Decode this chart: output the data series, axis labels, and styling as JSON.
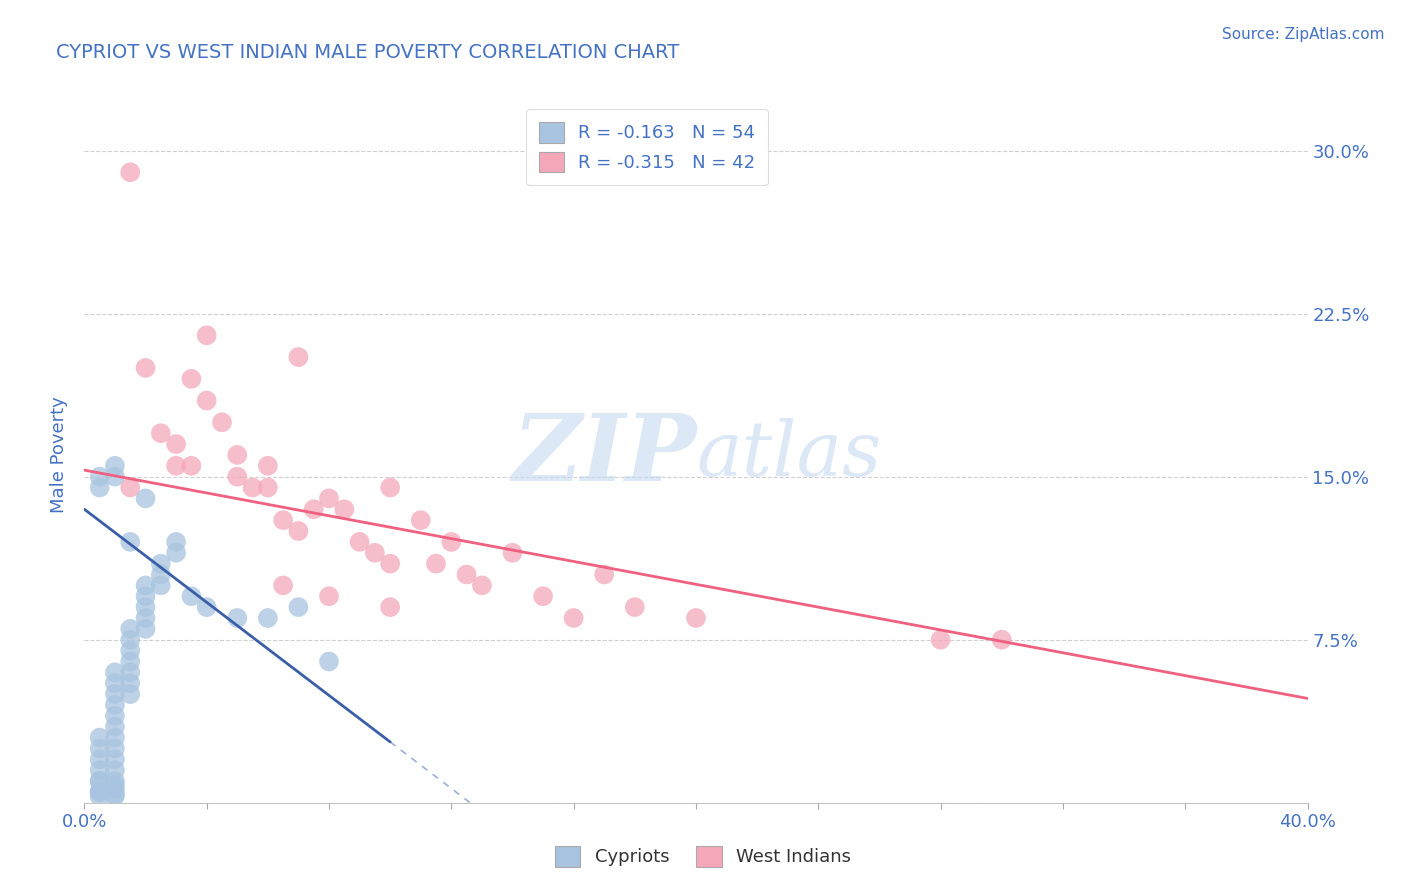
{
  "title": "CYPRIOT VS WEST INDIAN MALE POVERTY CORRELATION CHART",
  "source": "Source: ZipAtlas.com",
  "ylabel": "Male Poverty",
  "yticks": [
    0.0,
    0.075,
    0.15,
    0.225,
    0.3
  ],
  "ytick_labels": [
    "",
    "7.5%",
    "15.0%",
    "22.5%",
    "30.0%"
  ],
  "xmin": 0.0,
  "xmax": 0.4,
  "ymin": 0.0,
  "ymax": 0.32,
  "watermark_zip": "ZIP",
  "watermark_atlas": "atlas",
  "legend_label1": "R = -0.163   N = 54",
  "legend_label2": "R = -0.315   N = 42",
  "cypriot_color": "#a8c4e0",
  "west_indian_color": "#f4a7b9",
  "cypriot_line_color": "#3a5fa8",
  "west_indian_line_color": "#f06080",
  "title_color": "#4472c4",
  "source_color": "#4472c4",
  "axis_label_color": "#4472c4",
  "tick_color": "#4472c4",
  "grid_color": "#d0d0d0",
  "cypriot_scatter_x": [
    0.005,
    0.005,
    0.005,
    0.005,
    0.005,
    0.005,
    0.005,
    0.005,
    0.005,
    0.005,
    0.01,
    0.01,
    0.01,
    0.01,
    0.01,
    0.01,
    0.01,
    0.01,
    0.01,
    0.01,
    0.01,
    0.01,
    0.01,
    0.01,
    0.01,
    0.015,
    0.015,
    0.015,
    0.015,
    0.015,
    0.015,
    0.015,
    0.02,
    0.02,
    0.02,
    0.02,
    0.02,
    0.025,
    0.025,
    0.025,
    0.03,
    0.03,
    0.035,
    0.04,
    0.05,
    0.06,
    0.07,
    0.08,
    0.005,
    0.005,
    0.01,
    0.01,
    0.015,
    0.02
  ],
  "cypriot_scatter_y": [
    0.03,
    0.025,
    0.02,
    0.015,
    0.01,
    0.01,
    0.005,
    0.005,
    0.005,
    0.003,
    0.06,
    0.055,
    0.05,
    0.045,
    0.04,
    0.035,
    0.03,
    0.025,
    0.02,
    0.015,
    0.01,
    0.008,
    0.006,
    0.004,
    0.003,
    0.08,
    0.075,
    0.07,
    0.065,
    0.06,
    0.055,
    0.05,
    0.1,
    0.095,
    0.09,
    0.085,
    0.08,
    0.11,
    0.105,
    0.1,
    0.12,
    0.115,
    0.095,
    0.09,
    0.085,
    0.085,
    0.09,
    0.065,
    0.15,
    0.145,
    0.155,
    0.15,
    0.12,
    0.14
  ],
  "west_indian_scatter_x": [
    0.015,
    0.015,
    0.02,
    0.025,
    0.03,
    0.03,
    0.035,
    0.04,
    0.04,
    0.045,
    0.05,
    0.055,
    0.06,
    0.06,
    0.065,
    0.07,
    0.07,
    0.075,
    0.08,
    0.085,
    0.09,
    0.095,
    0.1,
    0.1,
    0.11,
    0.115,
    0.12,
    0.125,
    0.13,
    0.14,
    0.15,
    0.16,
    0.17,
    0.18,
    0.2,
    0.28,
    0.3,
    0.035,
    0.05,
    0.065,
    0.08,
    0.1
  ],
  "west_indian_scatter_y": [
    0.29,
    0.145,
    0.2,
    0.17,
    0.165,
    0.155,
    0.195,
    0.185,
    0.215,
    0.175,
    0.16,
    0.145,
    0.155,
    0.145,
    0.13,
    0.205,
    0.125,
    0.135,
    0.14,
    0.135,
    0.12,
    0.115,
    0.145,
    0.11,
    0.13,
    0.11,
    0.12,
    0.105,
    0.1,
    0.115,
    0.095,
    0.085,
    0.105,
    0.09,
    0.085,
    0.075,
    0.075,
    0.155,
    0.15,
    0.1,
    0.095,
    0.09
  ],
  "cypriot_line_x0": 0.0,
  "cypriot_line_y0": 0.135,
  "cypriot_line_x1": 0.1,
  "cypriot_line_y1": 0.028,
  "west_indian_line_x0": 0.0,
  "west_indian_line_y0": 0.153,
  "west_indian_line_x1": 0.4,
  "west_indian_line_y1": 0.048
}
